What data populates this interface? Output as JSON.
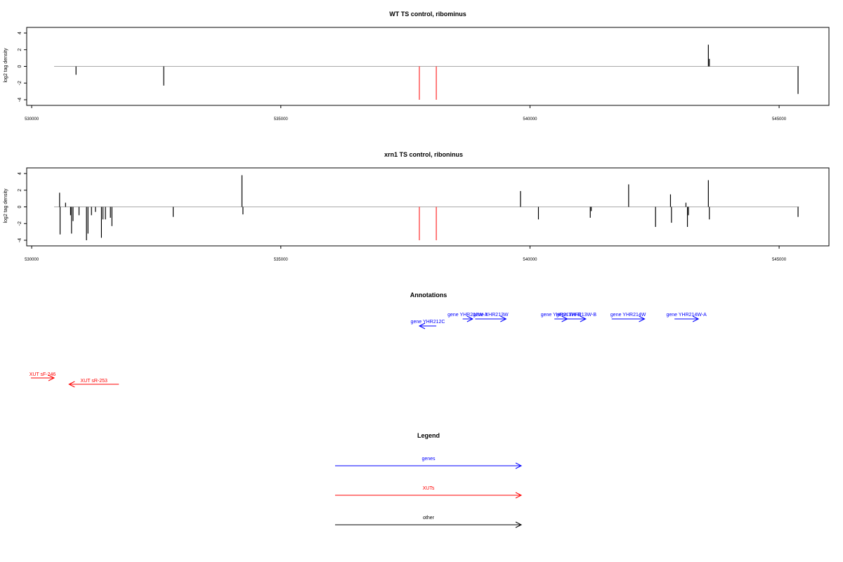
{
  "chart_data": [
    {
      "type": "bar",
      "title": "WT TS control, ribominus",
      "ylabel": "log2 tag density",
      "xlabel": "",
      "xlim": [
        529900,
        546000
      ],
      "ylim": [
        -4,
        4
      ],
      "yticks": [
        "-4",
        "-2",
        "0",
        "2",
        "4"
      ],
      "xticks": [
        {
          "value": 530000,
          "label": "530000"
        },
        {
          "value": 535000,
          "label": "535000"
        },
        {
          "value": 540000,
          "label": "540000"
        },
        {
          "value": 545000,
          "label": "545000"
        }
      ],
      "baseline_range": [
        530450,
        545400
      ],
      "bars": [
        {
          "x": 530890,
          "y": -1.0
        },
        {
          "x": 532650,
          "y": -2.3
        },
        {
          "x": 543580,
          "y": 2.6
        },
        {
          "x": 543600,
          "y": 0.9
        },
        {
          "x": 545380,
          "y": -3.3
        }
      ],
      "markers": [
        {
          "x": 537780,
          "y": -4,
          "color": "#ff0000"
        },
        {
          "x": 538120,
          "y": -4,
          "color": "#ff0000"
        }
      ]
    },
    {
      "type": "bar",
      "title": "xrn1 TS control, riboninus",
      "ylabel": "log2 tag density",
      "xlabel": "",
      "xlim": [
        529900,
        546000
      ],
      "ylim": [
        -4,
        4
      ],
      "yticks": [
        "-4",
        "-2",
        "0",
        "2",
        "4"
      ],
      "xticks": [
        {
          "value": 530000,
          "label": "530000"
        },
        {
          "value": 535000,
          "label": "535000"
        },
        {
          "value": 540000,
          "label": "540000"
        },
        {
          "value": 545000,
          "label": "545000"
        }
      ],
      "baseline_range": [
        530450,
        545400
      ],
      "bars": [
        {
          "x": 530560,
          "y": 1.7
        },
        {
          "x": 530570,
          "y": -3.3
        },
        {
          "x": 530680,
          "y": 0.5
        },
        {
          "x": 530780,
          "y": -1.0
        },
        {
          "x": 530800,
          "y": -3.2
        },
        {
          "x": 530830,
          "y": -1.7
        },
        {
          "x": 530950,
          "y": -1.0
        },
        {
          "x": 531100,
          "y": -4.0
        },
        {
          "x": 531130,
          "y": -3.2
        },
        {
          "x": 531200,
          "y": -1.0
        },
        {
          "x": 531280,
          "y": -0.6
        },
        {
          "x": 531400,
          "y": -3.7
        },
        {
          "x": 531430,
          "y": -1.5
        },
        {
          "x": 531480,
          "y": -1.5
        },
        {
          "x": 531580,
          "y": -1.3
        },
        {
          "x": 531610,
          "y": -2.3
        },
        {
          "x": 532840,
          "y": -1.2
        },
        {
          "x": 534220,
          "y": 3.8
        },
        {
          "x": 534240,
          "y": -0.9
        },
        {
          "x": 539810,
          "y": 1.9
        },
        {
          "x": 540170,
          "y": -1.5
        },
        {
          "x": 541210,
          "y": -1.3
        },
        {
          "x": 541230,
          "y": -0.5
        },
        {
          "x": 541980,
          "y": 2.7
        },
        {
          "x": 542520,
          "y": -2.4
        },
        {
          "x": 542820,
          "y": 1.5
        },
        {
          "x": 542840,
          "y": -1.9
        },
        {
          "x": 543130,
          "y": 0.5
        },
        {
          "x": 543160,
          "y": -2.4
        },
        {
          "x": 543180,
          "y": -1.0
        },
        {
          "x": 543580,
          "y": 3.2
        },
        {
          "x": 543600,
          "y": -1.5
        },
        {
          "x": 545380,
          "y": -1.2
        }
      ],
      "markers": [
        {
          "x": 537780,
          "y": -4,
          "color": "#ff0000"
        },
        {
          "x": 538120,
          "y": -4,
          "color": "#ff0000"
        }
      ]
    }
  ],
  "annotations": {
    "title": "Annotations",
    "genes_color": "#0000ff",
    "xuts_color": "#ff0000",
    "genes": [
      {
        "label": "gene YHR212C",
        "start": 538120,
        "end": 537780,
        "row": 1
      },
      {
        "label": "gene YHR212W-A",
        "start": 538650,
        "end": 538850,
        "row": 0
      },
      {
        "label": "gene YHR213W",
        "start": 538900,
        "end": 539520,
        "row": 0
      },
      {
        "label": "gene YHR213W-B",
        "start": 540490,
        "end": 540750,
        "row": 0
      },
      {
        "label": "gene YHR213W-B",
        "start": 540740,
        "end": 541120,
        "row": 0
      },
      {
        "label": "gene YHR214W",
        "start": 541640,
        "end": 542300,
        "row": 0
      },
      {
        "label": "gene YHR214W-A",
        "start": 542900,
        "end": 543380,
        "row": 0
      }
    ],
    "xuts": [
      {
        "label": "XUT sF-246",
        "start": 529900,
        "end": 530450,
        "row": 0
      },
      {
        "label": "XUT sR-253",
        "start": 531750,
        "end": 530750,
        "row": 1
      }
    ]
  },
  "legend": {
    "title": "Legend",
    "items": [
      {
        "label": "genes",
        "color": "#0000ff"
      },
      {
        "label": "XUTs",
        "color": "#ff0000"
      },
      {
        "label": "other",
        "color": "#000000"
      }
    ]
  }
}
